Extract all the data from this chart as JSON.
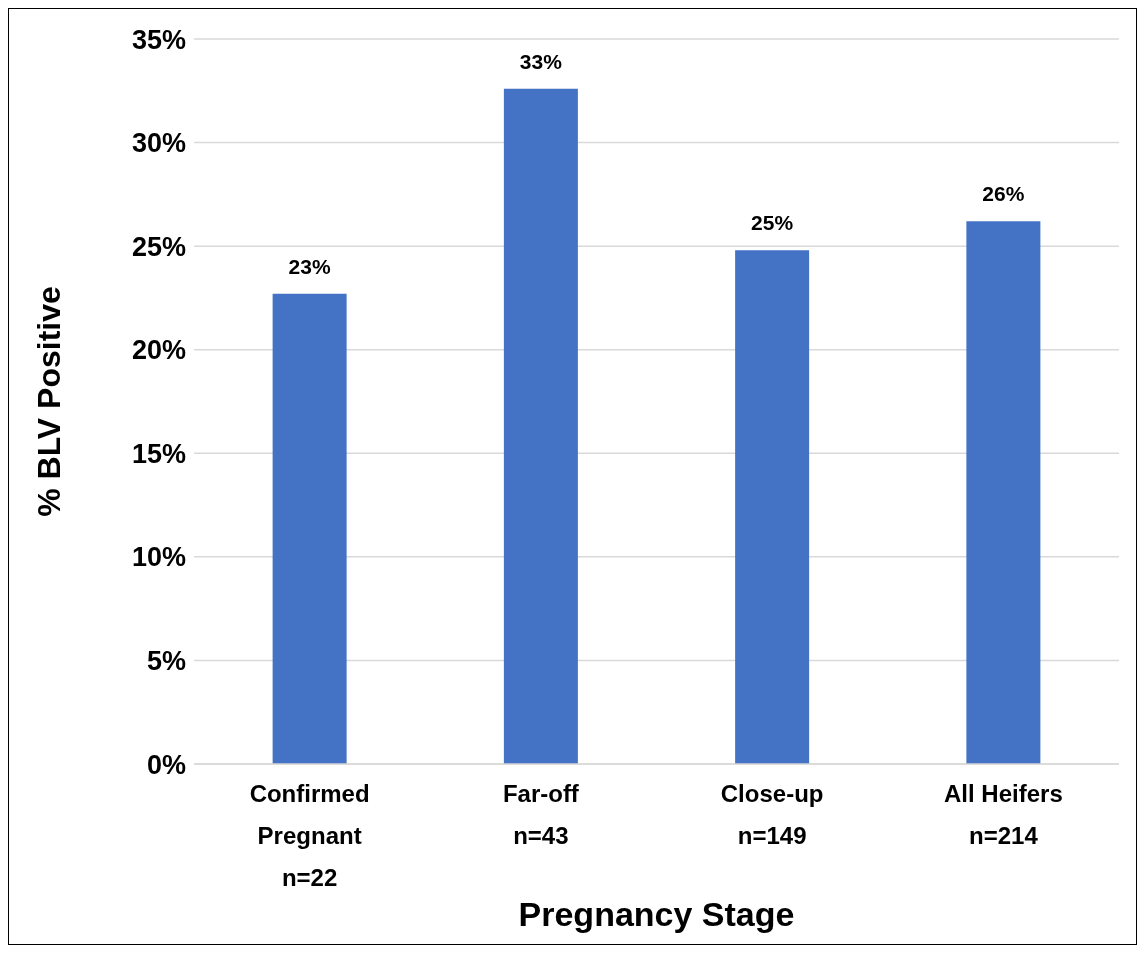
{
  "chart_data": {
    "type": "bar",
    "xlabel": "Pregnancy Stage",
    "ylabel": "% BLV Positive",
    "categories": [
      "Confirmed Pregnant n=22",
      "Far-off n=43",
      "Close-up n=149",
      "All Heifers n=214"
    ],
    "values": [
      22.7,
      32.6,
      24.8,
      26.2
    ],
    "color": "#4472c4",
    "value_labels": [
      "23%",
      "33%",
      "25%",
      "26%"
    ],
    "ylim": [
      0,
      35
    ],
    "yticks": [
      {
        "value": 0,
        "label": "0%"
      },
      {
        "value": 5,
        "label": "5%"
      },
      {
        "value": 10,
        "label": "10%"
      },
      {
        "value": 15,
        "label": "15%"
      },
      {
        "value": 20,
        "label": "20%"
      },
      {
        "value": 25,
        "label": "25%"
      },
      {
        "value": 30,
        "label": "30%"
      },
      {
        "value": 35,
        "label": "35%"
      }
    ],
    "grid": "y"
  }
}
